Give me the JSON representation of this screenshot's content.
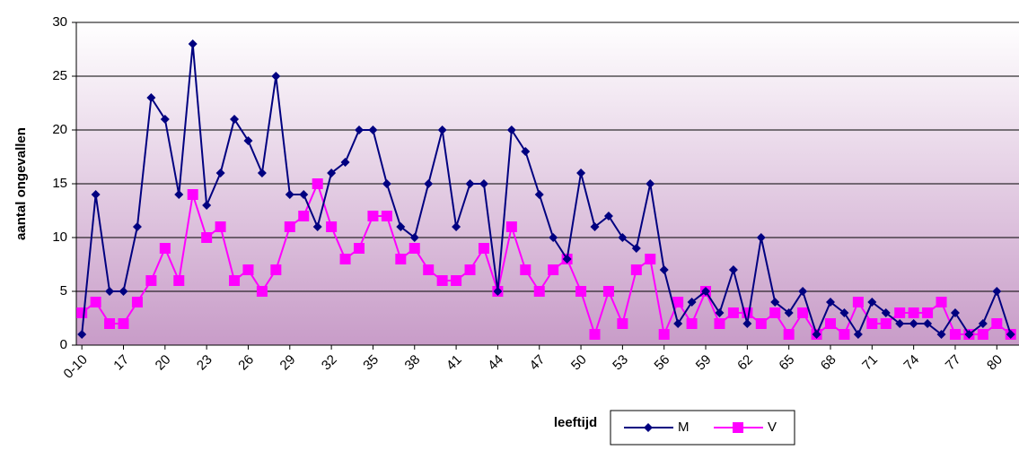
{
  "chart_data": {
    "type": "line",
    "y_label": "aantal ongevallen",
    "x_label": "leeftijd",
    "categories": [
      "0-10",
      null,
      null,
      "17",
      null,
      null,
      "20",
      null,
      null,
      "23",
      null,
      null,
      "26",
      null,
      null,
      "29",
      null,
      null,
      "32",
      null,
      null,
      "35",
      null,
      null,
      "38",
      null,
      null,
      "41",
      null,
      null,
      "44",
      null,
      null,
      "47",
      null,
      null,
      "50",
      null,
      null,
      "53",
      null,
      null,
      "56",
      null,
      null,
      "59",
      null,
      null,
      "62",
      null,
      null,
      "65",
      null,
      null,
      "68",
      null,
      null,
      "71",
      null,
      null,
      "74",
      null,
      null,
      "77",
      null,
      null,
      "80",
      null
    ],
    "series": [
      {
        "name": "M",
        "color": "#000080",
        "marker": "diamond",
        "values": [
          1,
          14,
          5,
          5,
          11,
          23,
          21,
          14,
          28,
          13,
          16,
          21,
          19,
          16,
          25,
          14,
          14,
          11,
          16,
          17,
          20,
          20,
          15,
          11,
          10,
          15,
          20,
          11,
          15,
          15,
          5,
          20,
          18,
          14,
          10,
          8,
          16,
          11,
          12,
          10,
          9,
          15,
          7,
          2,
          4,
          5,
          3,
          7,
          2,
          10,
          4,
          3,
          5,
          1,
          4,
          3,
          1,
          4,
          3,
          2,
          2,
          2,
          1,
          3,
          1,
          2,
          5,
          1
        ]
      },
      {
        "name": "V",
        "color": "#ff00ff",
        "marker": "square",
        "values": [
          3,
          4,
          2,
          2,
          4,
          6,
          9,
          6,
          14,
          10,
          11,
          6,
          7,
          5,
          7,
          11,
          12,
          15,
          11,
          8,
          9,
          12,
          12,
          8,
          9,
          7,
          6,
          6,
          7,
          9,
          5,
          11,
          7,
          5,
          7,
          8,
          5,
          1,
          5,
          2,
          7,
          8,
          1,
          4,
          2,
          5,
          2,
          3,
          3,
          2,
          3,
          1,
          3,
          1,
          2,
          1,
          4,
          2,
          2,
          3,
          3,
          3,
          4,
          1,
          1,
          1,
          2,
          1
        ]
      }
    ],
    "ylim": [
      0,
      30
    ],
    "yticks": [
      0,
      5,
      10,
      15,
      20,
      25,
      30
    ],
    "grid": true,
    "legend": "bottom"
  }
}
